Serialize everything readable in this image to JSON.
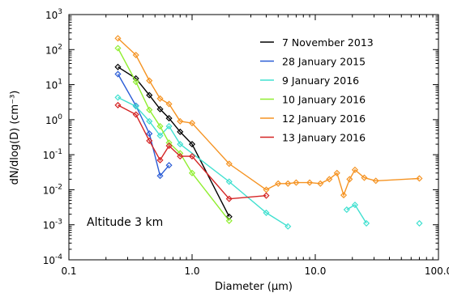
{
  "chart_data": {
    "type": "line",
    "xlabel": "Diameter (μm)",
    "ylabel": "dN/dlog(D) (cm⁻³)",
    "x_scale": "log",
    "y_scale": "log",
    "xlim": [
      0.1,
      100
    ],
    "ylim": [
      0.0001,
      1000
    ],
    "x_ticks": [
      {
        "value": 0.1,
        "label": "0.1"
      },
      {
        "value": 1,
        "label": "1.0"
      },
      {
        "value": 10,
        "label": "10.0"
      },
      {
        "value": 100,
        "label": "100.0"
      }
    ],
    "y_ticks": [
      {
        "value": 0.0001,
        "base": "10",
        "exp": "-4"
      },
      {
        "value": 0.001,
        "base": "10",
        "exp": "-3"
      },
      {
        "value": 0.01,
        "base": "10",
        "exp": "-2"
      },
      {
        "value": 0.1,
        "base": "10",
        "exp": "-1"
      },
      {
        "value": 1,
        "base": "10",
        "exp": "0"
      },
      {
        "value": 10,
        "base": "10",
        "exp": "1"
      },
      {
        "value": 100,
        "base": "10",
        "exp": "2"
      },
      {
        "value": 1000,
        "base": "10",
        "exp": "3"
      }
    ],
    "annotation": "Altitude 3 km",
    "grid": false,
    "legend_position": "top-right",
    "series": [
      {
        "name": "7 November 2013",
        "color": "#000000",
        "segments": [
          [
            [
              0.25,
              32
            ],
            [
              0.35,
              15
            ],
            [
              0.45,
              5
            ],
            [
              0.55,
              2
            ],
            [
              0.65,
              1.1
            ],
            [
              0.8,
              0.45
            ],
            [
              1.0,
              0.2
            ],
            [
              2.0,
              0.0017
            ]
          ]
        ]
      },
      {
        "name": "28 January 2015",
        "color": "#2a5cd6",
        "segments": [
          [
            [
              0.25,
              20
            ],
            [
              0.35,
              2.5
            ],
            [
              0.45,
              0.4
            ],
            [
              0.55,
              0.025
            ],
            [
              0.65,
              0.05
            ]
          ]
        ]
      },
      {
        "name": "9 January 2016",
        "color": "#40e0d0",
        "segments": [
          [
            [
              0.25,
              4.3
            ],
            [
              0.35,
              2.4
            ],
            [
              0.45,
              0.9
            ],
            [
              0.55,
              0.35
            ],
            [
              0.65,
              0.65
            ],
            [
              0.8,
              0.2
            ],
            [
              2.0,
              0.017
            ],
            [
              4.0,
              0.0022
            ],
            [
              6.0,
              0.0009
            ]
          ],
          [
            [
              18.0,
              0.0027
            ],
            [
              21.0,
              0.0037
            ],
            [
              26.0,
              0.0011
            ]
          ],
          [
            [
              70.0,
              0.0011
            ]
          ]
        ]
      },
      {
        "name": "10 January 2016",
        "color": "#90ee30",
        "segments": [
          [
            [
              0.25,
              110
            ],
            [
              0.35,
              12
            ],
            [
              0.45,
              1.9
            ],
            [
              0.55,
              0.65
            ],
            [
              0.65,
              0.22
            ],
            [
              0.8,
              0.11
            ],
            [
              1.0,
              0.03
            ],
            [
              2.0,
              0.0013
            ]
          ]
        ]
      },
      {
        "name": "12 January 2016",
        "color": "#f59322",
        "segments": [
          [
            [
              0.25,
              210
            ],
            [
              0.35,
              70
            ],
            [
              0.45,
              13
            ],
            [
              0.55,
              4
            ],
            [
              0.65,
              2.8
            ],
            [
              0.8,
              0.9
            ],
            [
              1.0,
              0.8
            ],
            [
              2.0,
              0.055
            ],
            [
              4.0,
              0.01
            ],
            [
              5.0,
              0.015
            ],
            [
              6.0,
              0.015
            ],
            [
              7.0,
              0.016
            ],
            [
              9.0,
              0.016
            ],
            [
              11.0,
              0.015
            ],
            [
              13.0,
              0.02
            ],
            [
              15.0,
              0.03
            ],
            [
              17.0,
              0.007
            ],
            [
              19.0,
              0.02
            ],
            [
              21.0,
              0.037
            ],
            [
              25.0,
              0.022
            ],
            [
              31.0,
              0.018
            ],
            [
              70.0,
              0.021
            ]
          ]
        ]
      },
      {
        "name": "13 January 2016",
        "color": "#d42424",
        "segments": [
          [
            [
              0.25,
              2.6
            ],
            [
              0.35,
              1.4
            ],
            [
              0.45,
              0.25
            ],
            [
              0.55,
              0.07
            ],
            [
              0.65,
              0.18
            ],
            [
              0.8,
              0.09
            ],
            [
              1.0,
              0.09
            ],
            [
              2.0,
              0.0055
            ],
            [
              4.0,
              0.0068
            ]
          ]
        ]
      }
    ]
  }
}
